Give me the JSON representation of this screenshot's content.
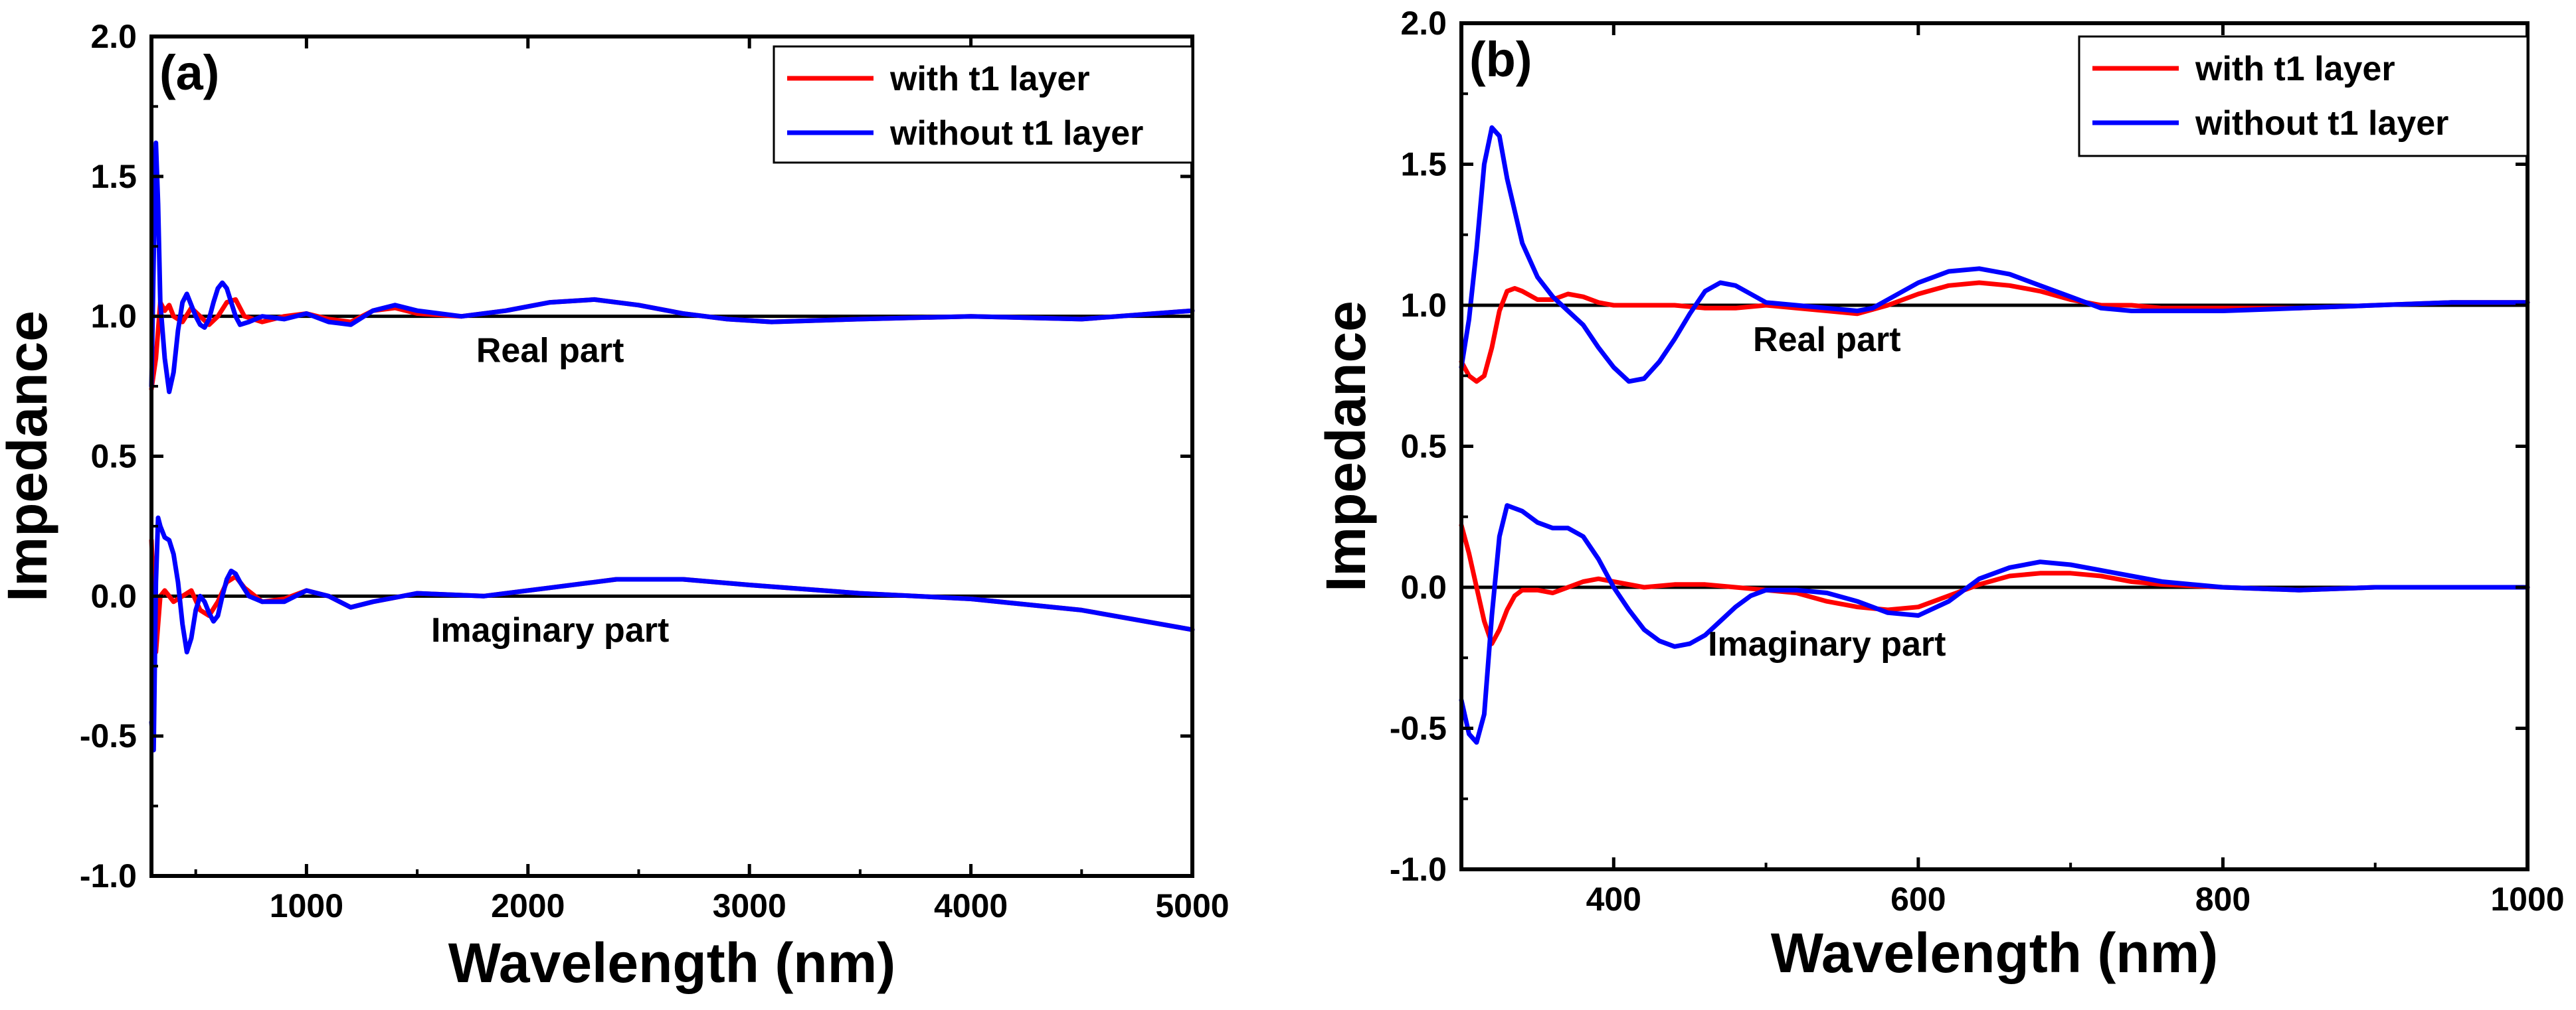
{
  "chart_data": [
    {
      "type": "line",
      "panel_label": "(a)",
      "xlabel": "Wavelength (nm)",
      "ylabel": "Impedance",
      "xlim": [
        300,
        5000
      ],
      "ylim": [
        -1.0,
        2.0
      ],
      "x_ticks": [
        1000,
        2000,
        3000,
        4000,
        5000
      ],
      "x_tick_labels": [
        "1000",
        "2000",
        "3000",
        "4000",
        "5000"
      ],
      "y_ticks": [
        -1.0,
        -0.5,
        0.0,
        0.5,
        1.0,
        1.5,
        2.0
      ],
      "y_tick_labels": [
        "-1.0",
        "-0.5",
        "0.0",
        "0.5",
        "1.0",
        "1.5",
        "2.0"
      ],
      "legend": [
        {
          "name": "with t1 layer",
          "color": "#ff0000"
        },
        {
          "name": "without t1 layer",
          "color": "#0000ff"
        }
      ],
      "reference_lines": [
        1.0,
        0.0
      ],
      "annotations": [
        {
          "text": "Real part",
          "x": 2100,
          "y": 0.88
        },
        {
          "text": "Imaginary part",
          "x": 2100,
          "y": -0.12
        }
      ],
      "series": [
        {
          "name": "with t1 layer",
          "part": "real",
          "color": "#ff0000",
          "x": [
            300,
            320,
            340,
            360,
            380,
            400,
            440,
            480,
            520,
            560,
            600,
            640,
            680,
            720,
            800,
            900,
            1000,
            1100,
            1200,
            1300,
            1400,
            1500,
            1700,
            1900,
            2100,
            2300,
            2500,
            2700,
            2900,
            3100,
            3500,
            4000,
            4500,
            5000
          ],
          "y": [
            0.74,
            0.85,
            1.05,
            1.02,
            1.04,
            1.0,
            0.98,
            1.03,
            1.0,
            0.97,
            1.0,
            1.05,
            1.06,
            1.0,
            0.98,
            1.0,
            1.01,
            0.99,
            0.98,
            1.02,
            1.03,
            1.01,
            1.0,
            1.02,
            1.05,
            1.06,
            1.04,
            1.01,
            0.99,
            0.98,
            0.99,
            1.0,
            0.99,
            1.02
          ]
        },
        {
          "name": "without t1 layer",
          "part": "real",
          "color": "#0000ff",
          "x": [
            300,
            310,
            320,
            330,
            340,
            360,
            380,
            400,
            420,
            440,
            460,
            480,
            500,
            520,
            540,
            560,
            580,
            600,
            620,
            640,
            660,
            680,
            700,
            740,
            800,
            900,
            1000,
            1100,
            1200,
            1300,
            1400,
            1500,
            1700,
            1900,
            2100,
            2300,
            2500,
            2700,
            2900,
            3100,
            3500,
            4000,
            4500,
            5000
          ],
          "y": [
            0.75,
            1.2,
            1.62,
            1.4,
            1.05,
            0.85,
            0.73,
            0.8,
            0.95,
            1.05,
            1.08,
            1.04,
            1.0,
            0.97,
            0.96,
            0.99,
            1.05,
            1.1,
            1.12,
            1.1,
            1.05,
            1.0,
            0.97,
            0.98,
            1.0,
            0.99,
            1.01,
            0.98,
            0.97,
            1.02,
            1.04,
            1.02,
            1.0,
            1.02,
            1.05,
            1.06,
            1.04,
            1.01,
            0.99,
            0.98,
            0.99,
            1.0,
            0.99,
            1.02
          ]
        },
        {
          "name": "with t1 layer",
          "part": "imaginary",
          "color": "#ff0000",
          "x": [
            300,
            320,
            340,
            360,
            380,
            400,
            440,
            480,
            520,
            560,
            600,
            640,
            680,
            720,
            800,
            900,
            1000,
            1100,
            1200,
            1300,
            1500,
            1800,
            2100,
            2400,
            2700,
            3000,
            3500,
            4000,
            4500,
            5000
          ],
          "y": [
            0.2,
            -0.2,
            0.0,
            0.02,
            0.0,
            -0.02,
            0.0,
            0.02,
            -0.05,
            -0.07,
            -0.02,
            0.05,
            0.07,
            0.03,
            -0.02,
            -0.01,
            0.02,
            0.0,
            -0.04,
            -0.02,
            0.01,
            0.0,
            0.03,
            0.06,
            0.06,
            0.04,
            0.01,
            -0.01,
            -0.05,
            -0.12
          ]
        },
        {
          "name": "without t1 layer",
          "part": "imaginary",
          "color": "#0000ff",
          "x": [
            300,
            310,
            320,
            330,
            340,
            360,
            380,
            400,
            420,
            440,
            460,
            480,
            500,
            520,
            540,
            560,
            580,
            600,
            620,
            640,
            660,
            680,
            700,
            740,
            800,
            900,
            1000,
            1100,
            1200,
            1300,
            1500,
            1800,
            2100,
            2400,
            2700,
            3000,
            3500,
            4000,
            4500,
            5000
          ],
          "y": [
            -0.45,
            -0.55,
            0.05,
            0.28,
            0.25,
            0.21,
            0.2,
            0.15,
            0.05,
            -0.1,
            -0.2,
            -0.15,
            -0.05,
            0.0,
            -0.02,
            -0.06,
            -0.09,
            -0.07,
            0.0,
            0.06,
            0.09,
            0.08,
            0.05,
            0.0,
            -0.02,
            -0.02,
            0.02,
            0.0,
            -0.04,
            -0.02,
            0.01,
            0.0,
            0.03,
            0.06,
            0.06,
            0.04,
            0.01,
            -0.01,
            -0.05,
            -0.12
          ]
        }
      ]
    },
    {
      "type": "line",
      "panel_label": "(b)",
      "xlabel": "Wavelength (nm)",
      "ylabel": "Impedance",
      "xlim": [
        300,
        1000
      ],
      "ylim": [
        -1.0,
        2.0
      ],
      "x_ticks": [
        400,
        600,
        800,
        1000
      ],
      "x_tick_labels": [
        "400",
        "600",
        "800",
        "1000"
      ],
      "y_ticks": [
        -1.0,
        -0.5,
        0.0,
        0.5,
        1.0,
        1.5,
        2.0
      ],
      "y_tick_labels": [
        "-1.0",
        "-0.5",
        "0.0",
        "0.5",
        "1.0",
        "1.5",
        "2.0"
      ],
      "legend": [
        {
          "name": "with t1 layer",
          "color": "#ff0000"
        },
        {
          "name": "without t1 layer",
          "color": "#0000ff"
        }
      ],
      "reference_lines": [
        1.0,
        0.0
      ],
      "annotations": [
        {
          "text": "Real part",
          "x": 540,
          "y": 0.88
        },
        {
          "text": "Imaginary part",
          "x": 540,
          "y": -0.2
        }
      ],
      "series": [
        {
          "name": "with t1 layer",
          "part": "real",
          "color": "#ff0000",
          "x": [
            300,
            305,
            310,
            315,
            320,
            325,
            330,
            335,
            340,
            350,
            360,
            370,
            380,
            390,
            400,
            420,
            440,
            460,
            480,
            500,
            520,
            540,
            560,
            580,
            600,
            620,
            640,
            660,
            680,
            700,
            720,
            740,
            760,
            800,
            850,
            900,
            950,
            1000
          ],
          "y": [
            0.8,
            0.75,
            0.73,
            0.75,
            0.85,
            0.98,
            1.05,
            1.06,
            1.05,
            1.02,
            1.02,
            1.04,
            1.03,
            1.01,
            1.0,
            1.0,
            1.0,
            0.99,
            0.99,
            1.0,
            0.99,
            0.98,
            0.97,
            1.0,
            1.04,
            1.07,
            1.08,
            1.07,
            1.05,
            1.02,
            1.0,
            1.0,
            0.99,
            0.99,
            0.99,
            1.0,
            1.01,
            1.01
          ]
        },
        {
          "name": "without t1 layer",
          "part": "real",
          "color": "#0000ff",
          "x": [
            300,
            305,
            310,
            315,
            320,
            325,
            330,
            340,
            350,
            360,
            370,
            380,
            390,
            400,
            410,
            420,
            430,
            440,
            450,
            460,
            470,
            480,
            490,
            500,
            520,
            540,
            560,
            570,
            580,
            600,
            620,
            640,
            660,
            680,
            700,
            720,
            740,
            760,
            800,
            850,
            900,
            950,
            1000
          ],
          "y": [
            0.78,
            0.95,
            1.2,
            1.5,
            1.63,
            1.6,
            1.45,
            1.22,
            1.1,
            1.03,
            0.98,
            0.93,
            0.85,
            0.78,
            0.73,
            0.74,
            0.8,
            0.88,
            0.97,
            1.05,
            1.08,
            1.07,
            1.04,
            1.01,
            1.0,
            0.99,
            0.98,
            0.99,
            1.02,
            1.08,
            1.12,
            1.13,
            1.11,
            1.07,
            1.03,
            0.99,
            0.98,
            0.98,
            0.98,
            0.99,
            1.0,
            1.01,
            1.01
          ]
        },
        {
          "name": "with t1 layer",
          "part": "imaginary",
          "color": "#ff0000",
          "x": [
            300,
            305,
            310,
            315,
            320,
            325,
            330,
            335,
            340,
            350,
            360,
            370,
            380,
            390,
            400,
            420,
            440,
            460,
            480,
            500,
            520,
            540,
            560,
            580,
            600,
            620,
            640,
            660,
            680,
            700,
            720,
            740,
            760,
            800,
            850,
            900,
            950,
            1000
          ],
          "y": [
            0.22,
            0.12,
            0.0,
            -0.12,
            -0.2,
            -0.15,
            -0.08,
            -0.03,
            -0.01,
            -0.01,
            -0.02,
            0.0,
            0.02,
            0.03,
            0.02,
            0.0,
            0.01,
            0.01,
            0.0,
            -0.01,
            -0.02,
            -0.05,
            -0.07,
            -0.08,
            -0.07,
            -0.03,
            0.01,
            0.04,
            0.05,
            0.05,
            0.04,
            0.02,
            0.01,
            0.0,
            -0.01,
            0.0,
            0.0,
            0.0
          ]
        },
        {
          "name": "without t1 layer",
          "part": "imaginary",
          "color": "#0000ff",
          "x": [
            300,
            305,
            310,
            315,
            320,
            325,
            330,
            340,
            350,
            360,
            370,
            380,
            390,
            400,
            410,
            420,
            430,
            440,
            450,
            460,
            470,
            480,
            490,
            500,
            520,
            540,
            560,
            580,
            600,
            620,
            640,
            660,
            680,
            700,
            720,
            740,
            760,
            800,
            850,
            900,
            950,
            1000
          ],
          "y": [
            -0.4,
            -0.52,
            -0.55,
            -0.45,
            -0.1,
            0.18,
            0.29,
            0.27,
            0.23,
            0.21,
            0.21,
            0.18,
            0.1,
            0.0,
            -0.08,
            -0.15,
            -0.19,
            -0.21,
            -0.2,
            -0.17,
            -0.12,
            -0.07,
            -0.03,
            -0.01,
            -0.01,
            -0.02,
            -0.05,
            -0.09,
            -0.1,
            -0.05,
            0.03,
            0.07,
            0.09,
            0.08,
            0.06,
            0.04,
            0.02,
            0.0,
            -0.01,
            0.0,
            0.0,
            0.0
          ]
        }
      ]
    }
  ]
}
